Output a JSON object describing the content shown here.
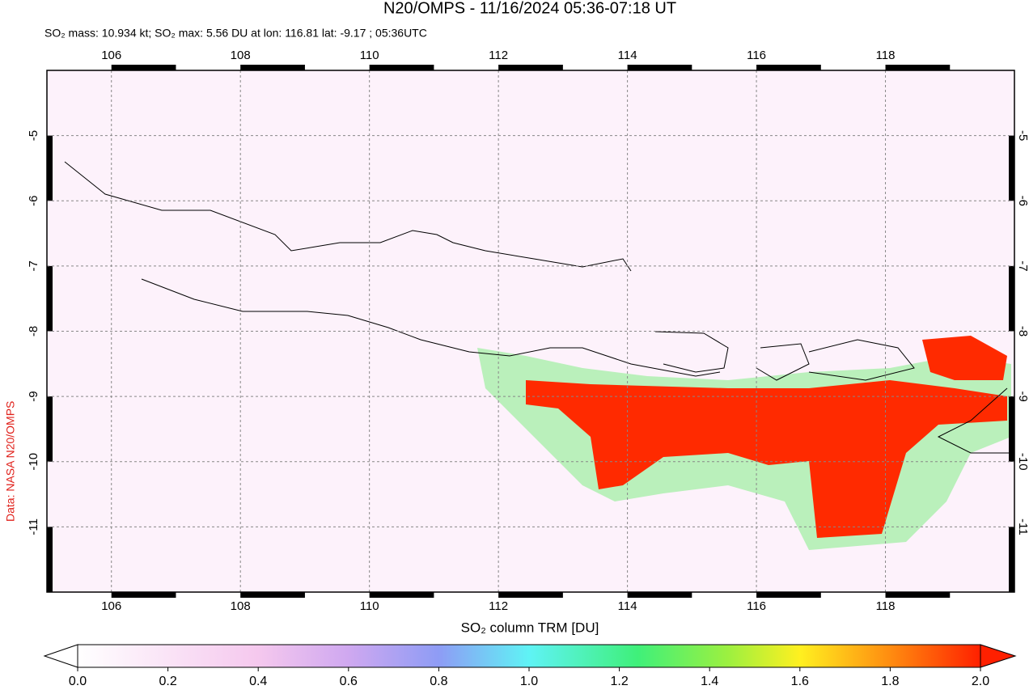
{
  "map": {
    "title": "N20/OMPS - 11/16/2024 05:36-07:18 UT",
    "subtitle": "SO₂ mass: 10.934 kt; SO₂ max: 5.56 DU at lon: 116.81 lat: -9.17 ; 05:36UTC",
    "credit": "Data: NASA N20/OMPS",
    "xlim": [
      105,
      120
    ],
    "ylim": [
      -12,
      -4
    ],
    "xticks": [
      106,
      108,
      110,
      112,
      114,
      116,
      118
    ],
    "yticks": [
      -5,
      -6,
      -7,
      -8,
      -9,
      -10,
      -11
    ],
    "grid": true,
    "colorbar": {
      "label": "SO₂ column TRM [DU]",
      "range": [
        0,
        2
      ],
      "ticks": [
        {
          "value": 0,
          "label": "0.0"
        },
        {
          "value": 0.2,
          "label": "0.2"
        },
        {
          "value": 0.4,
          "label": "0.4"
        },
        {
          "value": 0.6,
          "label": "0.6"
        },
        {
          "value": 0.8,
          "label": "0.8"
        },
        {
          "value": 1,
          "label": "1.0"
        },
        {
          "value": 1.2,
          "label": "1.2"
        },
        {
          "value": 1.4,
          "label": "1.4"
        },
        {
          "value": 1.6,
          "label": "1.6"
        },
        {
          "value": 1.8,
          "label": "1.8"
        },
        {
          "value": 2,
          "label": "2.0"
        }
      ]
    }
  }
}
